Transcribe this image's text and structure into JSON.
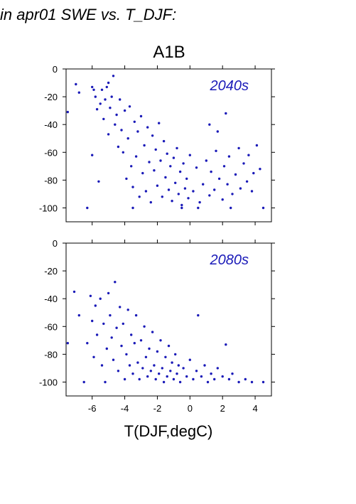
{
  "figure": {
    "header": "in apr01 SWE vs. T_DJF:",
    "scenario": "A1B",
    "xlabel": "T(DJF,degC)",
    "point_color": "#1a1ab8"
  },
  "chart_data": [
    {
      "type": "scatter",
      "panel_label": "2040s",
      "xlim": [
        -7.6,
        5.0
      ],
      "ylim": [
        -110,
        0
      ],
      "x_ticks": [
        -6,
        -4,
        -2,
        0,
        2,
        4
      ],
      "y_ticks": [
        0,
        -20,
        -40,
        -60,
        -80,
        -100
      ],
      "x_ticks_labeled": false,
      "grid": false,
      "points": [
        [
          -7.5,
          -31
        ],
        [
          -7.0,
          -11
        ],
        [
          -6.8,
          -17
        ],
        [
          -6.3,
          -100
        ],
        [
          -6.0,
          -13
        ],
        [
          -6.0,
          -62
        ],
        [
          -5.9,
          -15
        ],
        [
          -5.8,
          -20
        ],
        [
          -5.7,
          -29
        ],
        [
          -5.6,
          -81
        ],
        [
          -5.5,
          -25
        ],
        [
          -5.4,
          -15
        ],
        [
          -5.3,
          -36
        ],
        [
          -5.2,
          -22
        ],
        [
          -5.1,
          -13
        ],
        [
          -5.0,
          -10
        ],
        [
          -5.0,
          -47
        ],
        [
          -4.9,
          -28
        ],
        [
          -4.8,
          -20
        ],
        [
          -4.7,
          -5
        ],
        [
          -4.6,
          -40
        ],
        [
          -4.5,
          -33
        ],
        [
          -4.4,
          -56
        ],
        [
          -4.3,
          -22
        ],
        [
          -4.2,
          -44
        ],
        [
          -4.1,
          -60
        ],
        [
          -4.0,
          -30
        ],
        [
          -3.9,
          -79
        ],
        [
          -3.8,
          -50
        ],
        [
          -3.7,
          -27
        ],
        [
          -3.6,
          -70
        ],
        [
          -3.5,
          -85
        ],
        [
          -3.4,
          -38
        ],
        [
          -3.3,
          -63
        ],
        [
          -3.2,
          -45
        ],
        [
          -3.1,
          -92
        ],
        [
          -3.0,
          -34
        ],
        [
          -2.9,
          -75
        ],
        [
          -2.8,
          -55
        ],
        [
          -2.7,
          -88
        ],
        [
          -2.6,
          -42
        ],
        [
          -2.5,
          -67
        ],
        [
          -2.4,
          -96
        ],
        [
          -2.3,
          -48
        ],
        [
          -2.2,
          -73
        ],
        [
          -2.1,
          -58
        ],
        [
          -2.0,
          -84
        ],
        [
          -1.9,
          -39
        ],
        [
          -1.8,
          -66
        ],
        [
          -1.7,
          -92
        ],
        [
          -1.6,
          -52
        ],
        [
          -1.5,
          -78
        ],
        [
          -1.4,
          -61
        ],
        [
          -1.3,
          -87
        ],
        [
          -1.2,
          -70
        ],
        [
          -1.1,
          -95
        ],
        [
          -1.0,
          -64
        ],
        [
          -0.9,
          -82
        ],
        [
          -0.8,
          -57
        ],
        [
          -0.7,
          -90
        ],
        [
          -0.6,
          -74
        ],
        [
          -0.5,
          -98
        ],
        [
          -0.4,
          -68
        ],
        [
          -0.3,
          -86
        ],
        [
          -0.2,
          -79
        ],
        [
          -0.1,
          -93
        ],
        [
          0.0,
          -62
        ],
        [
          0.2,
          -88
        ],
        [
          0.4,
          -71
        ],
        [
          0.6,
          -96
        ],
        [
          0.8,
          -83
        ],
        [
          1.0,
          -66
        ],
        [
          1.2,
          -91
        ],
        [
          1.3,
          -74
        ],
        [
          1.5,
          -87
        ],
        [
          1.6,
          -59
        ],
        [
          1.8,
          -79
        ],
        [
          2.0,
          -94
        ],
        [
          2.1,
          -70
        ],
        [
          2.3,
          -83
        ],
        [
          2.4,
          -63
        ],
        [
          2.6,
          -90
        ],
        [
          2.8,
          -76
        ],
        [
          3.0,
          -57
        ],
        [
          3.1,
          -86
        ],
        [
          3.3,
          -68
        ],
        [
          3.5,
          -81
        ],
        [
          3.6,
          -62
        ],
        [
          3.8,
          -88
        ],
        [
          3.9,
          -75
        ],
        [
          4.1,
          -55
        ],
        [
          4.3,
          -72
        ],
        [
          2.2,
          -32
        ],
        [
          1.2,
          -40
        ],
        [
          1.7,
          -45
        ],
        [
          -0.5,
          -100
        ],
        [
          -3.5,
          -100
        ],
        [
          0.5,
          -100
        ],
        [
          2.5,
          -100
        ],
        [
          4.5,
          -100
        ]
      ]
    },
    {
      "type": "scatter",
      "panel_label": "2080s",
      "xlim": [
        -7.6,
        5.0
      ],
      "ylim": [
        -110,
        0
      ],
      "x_ticks": [
        -6,
        -4,
        -2,
        0,
        2,
        4
      ],
      "y_ticks": [
        0,
        -20,
        -40,
        -60,
        -80,
        -100
      ],
      "x_ticks_labeled": true,
      "grid": false,
      "points": [
        [
          -7.5,
          -72
        ],
        [
          -7.1,
          -35
        ],
        [
          -6.8,
          -52
        ],
        [
          -6.5,
          -100
        ],
        [
          -6.3,
          -72
        ],
        [
          -6.1,
          -38
        ],
        [
          -6.0,
          -56
        ],
        [
          -5.9,
          -82
        ],
        [
          -5.8,
          -45
        ],
        [
          -5.7,
          -66
        ],
        [
          -5.5,
          -40
        ],
        [
          -5.4,
          -88
        ],
        [
          -5.3,
          -58
        ],
        [
          -5.2,
          -100
        ],
        [
          -5.1,
          -76
        ],
        [
          -5.0,
          -36
        ],
        [
          -4.9,
          -52
        ],
        [
          -4.8,
          -68
        ],
        [
          -4.7,
          -84
        ],
        [
          -4.6,
          -28
        ],
        [
          -4.5,
          -61
        ],
        [
          -4.4,
          -92
        ],
        [
          -4.3,
          -46
        ],
        [
          -4.2,
          -74
        ],
        [
          -4.1,
          -58
        ],
        [
          -4.0,
          -98
        ],
        [
          -3.9,
          -80
        ],
        [
          -3.8,
          -48
        ],
        [
          -3.7,
          -88
        ],
        [
          -3.6,
          -66
        ],
        [
          -3.5,
          -94
        ],
        [
          -3.4,
          -72
        ],
        [
          -3.3,
          -52
        ],
        [
          -3.2,
          -86
        ],
        [
          -3.1,
          -98
        ],
        [
          -3.0,
          -70
        ],
        [
          -2.9,
          -90
        ],
        [
          -2.8,
          -60
        ],
        [
          -2.7,
          -82
        ],
        [
          -2.6,
          -96
        ],
        [
          -2.5,
          -76
        ],
        [
          -2.4,
          -92
        ],
        [
          -2.3,
          -64
        ],
        [
          -2.2,
          -88
        ],
        [
          -2.1,
          -98
        ],
        [
          -2.0,
          -78
        ],
        [
          -1.9,
          -94
        ],
        [
          -1.8,
          -70
        ],
        [
          -1.7,
          -90
        ],
        [
          -1.6,
          -100
        ],
        [
          -1.5,
          -82
        ],
        [
          -1.4,
          -96
        ],
        [
          -1.3,
          -74
        ],
        [
          -1.2,
          -92
        ],
        [
          -1.1,
          -86
        ],
        [
          -1.0,
          -98
        ],
        [
          -0.9,
          -80
        ],
        [
          -0.8,
          -94
        ],
        [
          -0.7,
          -88
        ],
        [
          -0.6,
          -100
        ],
        [
          -0.4,
          -90
        ],
        [
          -0.2,
          -96
        ],
        [
          0.0,
          -84
        ],
        [
          0.2,
          -98
        ],
        [
          0.4,
          -92
        ],
        [
          0.5,
          -52
        ],
        [
          0.7,
          -96
        ],
        [
          0.9,
          -88
        ],
        [
          1.1,
          -100
        ],
        [
          1.3,
          -94
        ],
        [
          1.5,
          -98
        ],
        [
          1.7,
          -90
        ],
        [
          2.0,
          -96
        ],
        [
          2.2,
          -73
        ],
        [
          2.4,
          -98
        ],
        [
          2.6,
          -94
        ],
        [
          3.0,
          -100
        ],
        [
          3.4,
          -98
        ],
        [
          3.8,
          -100
        ],
        [
          4.5,
          -100
        ]
      ]
    }
  ]
}
